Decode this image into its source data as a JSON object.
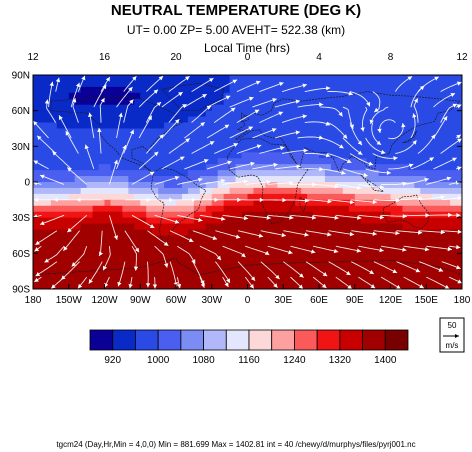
{
  "chart_data": {
    "type": "heatmap",
    "title": "NEUTRAL TEMPERATURE (DEG K)",
    "subtitle": "UT=  0.00 ZP=  5.00 AVEHT= 522.38 (km)",
    "top_axis": {
      "label": "Local Time (hrs)",
      "ticks": [
        "12",
        "16",
        "20",
        "0",
        "4",
        "8",
        "12"
      ]
    },
    "x_axis": {
      "range": [
        -180,
        180
      ],
      "ticks": [
        {
          "value": -180,
          "label": "180"
        },
        {
          "value": -150,
          "label": "150W"
        },
        {
          "value": -120,
          "label": "120W"
        },
        {
          "value": -90,
          "label": "90W"
        },
        {
          "value": -60,
          "label": "60W"
        },
        {
          "value": -30,
          "label": "30W"
        },
        {
          "value": 0,
          "label": "0"
        },
        {
          "value": 30,
          "label": "30E"
        },
        {
          "value": 60,
          "label": "60E"
        },
        {
          "value": 90,
          "label": "90E"
        },
        {
          "value": 120,
          "label": "120E"
        },
        {
          "value": 150,
          "label": "150E"
        },
        {
          "value": 180,
          "label": "180"
        }
      ]
    },
    "y_axis": {
      "range": [
        -90,
        90
      ],
      "ticks": [
        {
          "value": 90,
          "label": "90N"
        },
        {
          "value": 60,
          "label": "60N"
        },
        {
          "value": 30,
          "label": "30N"
        },
        {
          "value": 0,
          "label": "0"
        },
        {
          "value": -30,
          "label": "30S"
        },
        {
          "value": -60,
          "label": "60S"
        },
        {
          "value": -90,
          "label": "90S"
        }
      ]
    },
    "colorbar": {
      "levels": [
        920,
        960,
        1000,
        1040,
        1080,
        1120,
        1160,
        1200,
        1240,
        1280,
        1320,
        1360,
        1400
      ],
      "labels": [
        "920",
        "1000",
        "1080",
        "1160",
        "1240",
        "1320",
        "1400"
      ],
      "colors": [
        "#0a0096",
        "#0a2ac8",
        "#2a4ae6",
        "#4a5ff0",
        "#7c8cf5",
        "#b0b8fa",
        "#e4e6fd",
        "#fcd8d8",
        "#fca0a0",
        "#fa5a5a",
        "#f01414",
        "#c80000",
        "#a00000",
        "#780000"
      ]
    },
    "field": {
      "min": 881.699,
      "max": 1402.81
    },
    "vector_reference": {
      "value": "50",
      "unit": "m/s"
    },
    "footer": "tgcm24  (Day,Hr,Min = 4,0,0) Min = 881.699  Max  = 1402.81  int = 40 /chewy/d/murphys/files/pyrj001.nc"
  }
}
